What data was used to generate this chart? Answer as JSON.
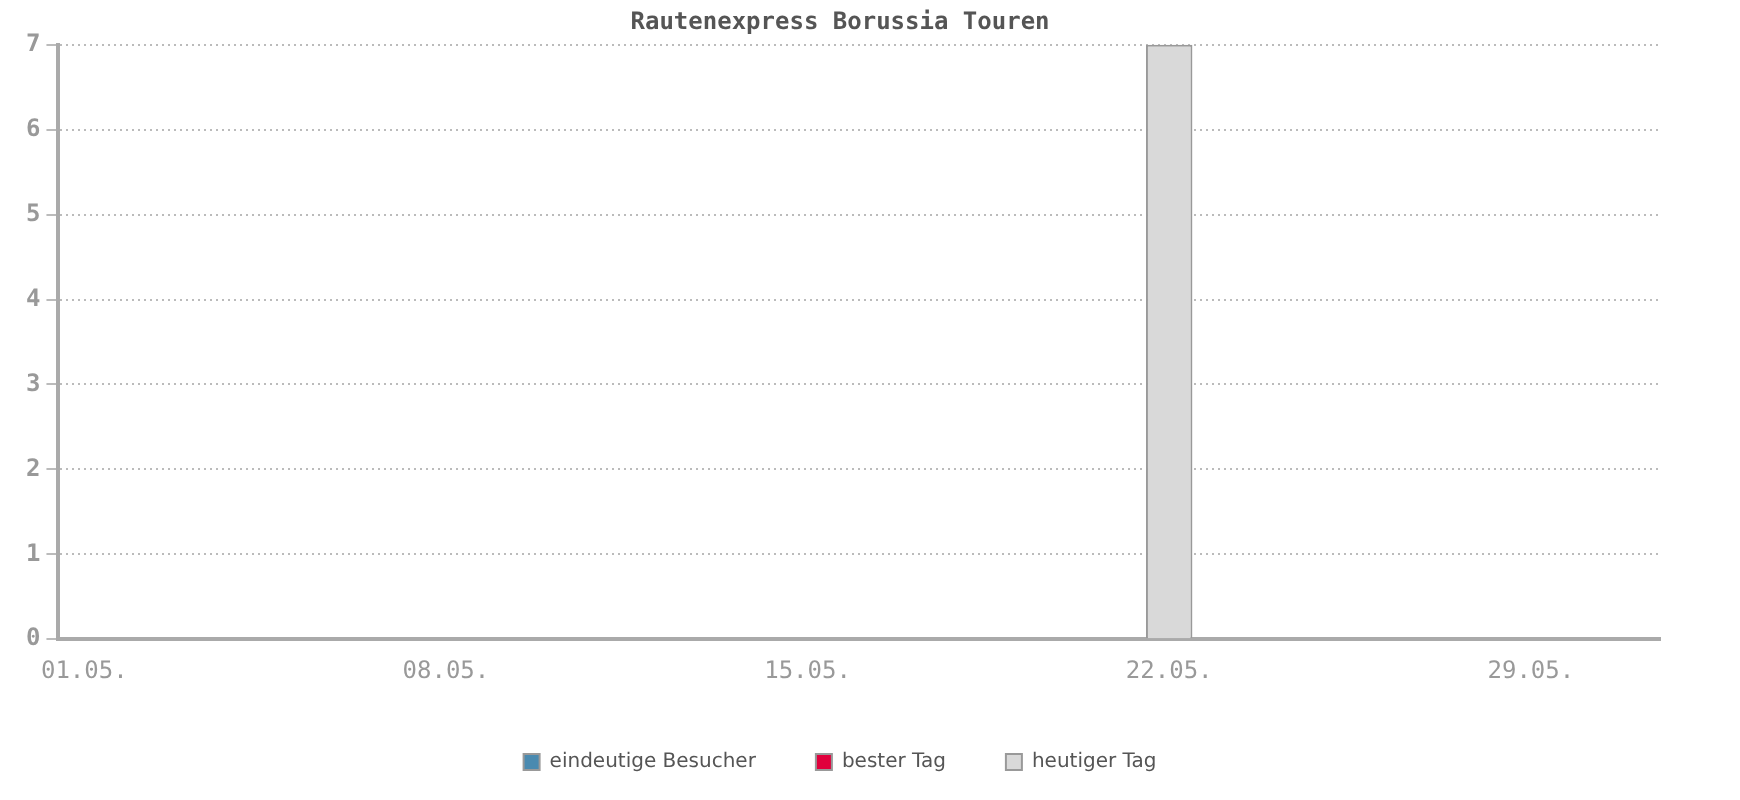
{
  "chart_data": {
    "type": "bar",
    "title": "Rautenexpress Borussia Touren",
    "categories": [
      "01.05.",
      null,
      null,
      null,
      null,
      null,
      null,
      "08.05.",
      null,
      null,
      null,
      null,
      null,
      null,
      "15.05.",
      null,
      null,
      null,
      null,
      null,
      null,
      "22.05.",
      null,
      null,
      null,
      null,
      null,
      null,
      "29.05.",
      null,
      null
    ],
    "series": [
      {
        "name": "eindeutige Besucher",
        "color": "#4a8ab0",
        "values": [
          0,
          0,
          0,
          0,
          0,
          0,
          0,
          0,
          0,
          0,
          0,
          0,
          0,
          0,
          0,
          0,
          0,
          0,
          0,
          0,
          0,
          0,
          0,
          0,
          0,
          0,
          0,
          0,
          0,
          0,
          0
        ]
      },
      {
        "name": "bester Tag",
        "color": "#e0003c",
        "values": [
          0,
          0,
          0,
          0,
          0,
          0,
          0,
          0,
          0,
          0,
          0,
          0,
          0,
          0,
          0,
          0,
          0,
          0,
          0,
          0,
          0,
          0,
          0,
          0,
          0,
          0,
          0,
          0,
          0,
          0,
          0
        ]
      },
      {
        "name": "heutiger Tag",
        "color": "#d9d9d9",
        "values": [
          null,
          null,
          null,
          null,
          null,
          null,
          null,
          null,
          null,
          null,
          null,
          null,
          null,
          null,
          null,
          null,
          null,
          null,
          null,
          null,
          null,
          7,
          null,
          null,
          null,
          null,
          null,
          null,
          null,
          null,
          null
        ]
      }
    ],
    "stacked": true,
    "ylim": [
      0,
      7
    ],
    "yticks": [
      0,
      1,
      2,
      3,
      4,
      5,
      6,
      7
    ],
    "grid": "y",
    "legend": "bottom"
  }
}
